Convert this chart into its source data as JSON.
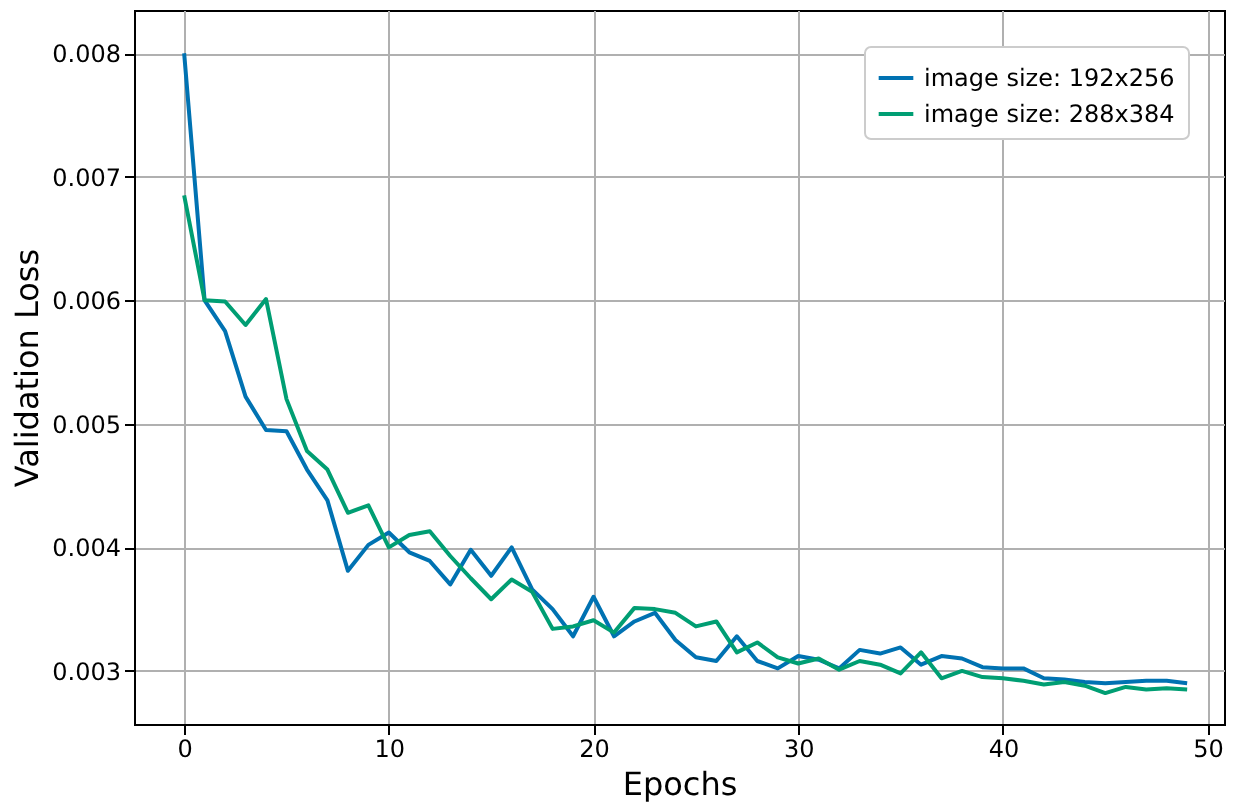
{
  "chart_data": {
    "type": "line",
    "xlabel": "Epochs",
    "ylabel": "Validation Loss",
    "x": [
      0,
      1,
      2,
      3,
      4,
      5,
      6,
      7,
      8,
      9,
      10,
      11,
      12,
      13,
      14,
      15,
      16,
      17,
      18,
      19,
      20,
      21,
      22,
      23,
      24,
      25,
      26,
      27,
      28,
      29,
      30,
      31,
      32,
      33,
      34,
      35,
      36,
      37,
      38,
      39,
      40,
      41,
      42,
      43,
      44,
      45,
      46,
      47,
      48,
      49
    ],
    "series": [
      {
        "name": "image size: 192x256",
        "color": "#0072b2",
        "values": [
          0.008,
          0.006,
          0.00575,
          0.00522,
          0.00495,
          0.00494,
          0.00463,
          0.00438,
          0.00381,
          0.00402,
          0.00412,
          0.00396,
          0.00389,
          0.0037,
          0.00398,
          0.00377,
          0.004,
          0.00366,
          0.0035,
          0.00328,
          0.0036,
          0.00328,
          0.0034,
          0.00347,
          0.00325,
          0.00311,
          0.00308,
          0.00328,
          0.00308,
          0.00302,
          0.00312,
          0.00309,
          0.00302,
          0.00317,
          0.00314,
          0.00319,
          0.00305,
          0.00312,
          0.0031,
          0.00303,
          0.00302,
          0.00302,
          0.00294,
          0.00293,
          0.00291,
          0.0029,
          0.00291,
          0.00292,
          0.00292,
          0.0029
        ]
      },
      {
        "name": "image size: 288x384",
        "color": "#009e73",
        "values": [
          0.00685,
          0.006,
          0.00599,
          0.0058,
          0.00601,
          0.0052,
          0.00478,
          0.00463,
          0.00428,
          0.00434,
          0.004,
          0.0041,
          0.00413,
          0.00393,
          0.00375,
          0.00358,
          0.00374,
          0.00364,
          0.00334,
          0.00336,
          0.00341,
          0.00331,
          0.00351,
          0.0035,
          0.00347,
          0.00336,
          0.0034,
          0.00315,
          0.00323,
          0.00311,
          0.00306,
          0.0031,
          0.00301,
          0.00308,
          0.00305,
          0.00298,
          0.00315,
          0.00294,
          0.003,
          0.00295,
          0.00294,
          0.00292,
          0.00289,
          0.00291,
          0.00288,
          0.00282,
          0.00287,
          0.00285,
          0.00286,
          0.00285
        ]
      }
    ],
    "xlim": [
      -2.45,
      50.8
    ],
    "ylim": [
      0.00257,
      0.00835
    ],
    "xticks": [
      0,
      10,
      20,
      30,
      40,
      50
    ],
    "yticks": [
      0.003,
      0.004,
      0.005,
      0.006,
      0.007,
      0.008
    ],
    "grid": true,
    "legend": "top right",
    "marker": "none",
    "line_style": "solid"
  }
}
